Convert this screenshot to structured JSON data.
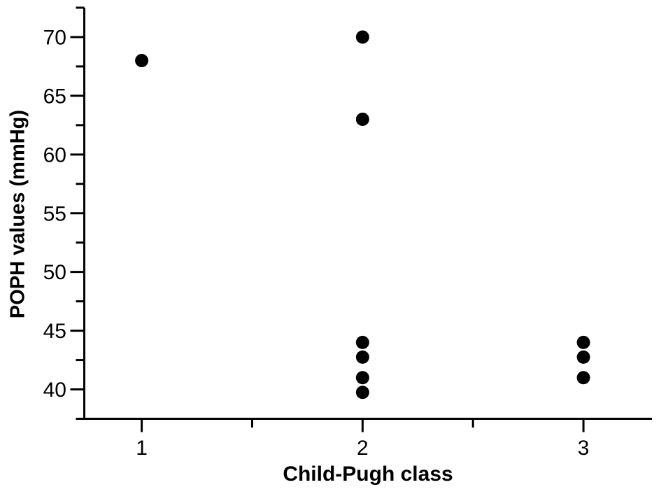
{
  "figure": {
    "background_color": "#ffffff"
  },
  "chart_data": {
    "type": "scatter",
    "title": "",
    "xlabel": "Child-Pugh class",
    "ylabel": "POPH values (mmHg)",
    "axis_color": "#000000",
    "marker_color": "#000000",
    "marker_shape": "circle",
    "grid": false,
    "legend": null,
    "xlim": [
      0.74,
      3.31
    ],
    "ylim": [
      37.5,
      72.5
    ],
    "x_ticks": [
      1,
      2,
      3
    ],
    "x_minor_ticks": [
      1.5,
      2.5
    ],
    "y_ticks": [
      40,
      45,
      50,
      55,
      60,
      65,
      70
    ],
    "y_minor_ticks": [
      37.5,
      42.5,
      47.5,
      52.5,
      57.5,
      62.5,
      67.5,
      72.5
    ],
    "points": [
      {
        "x": 1,
        "y": 68
      },
      {
        "x": 2,
        "y": 70
      },
      {
        "x": 2,
        "y": 63
      },
      {
        "x": 2,
        "y": 44
      },
      {
        "x": 2,
        "y": 43
      },
      {
        "x": 2,
        "y": 41
      },
      {
        "x": 2,
        "y": 40
      },
      {
        "x": 3,
        "y": 44
      },
      {
        "x": 3,
        "y": 43
      },
      {
        "x": 3,
        "y": 41
      }
    ]
  }
}
